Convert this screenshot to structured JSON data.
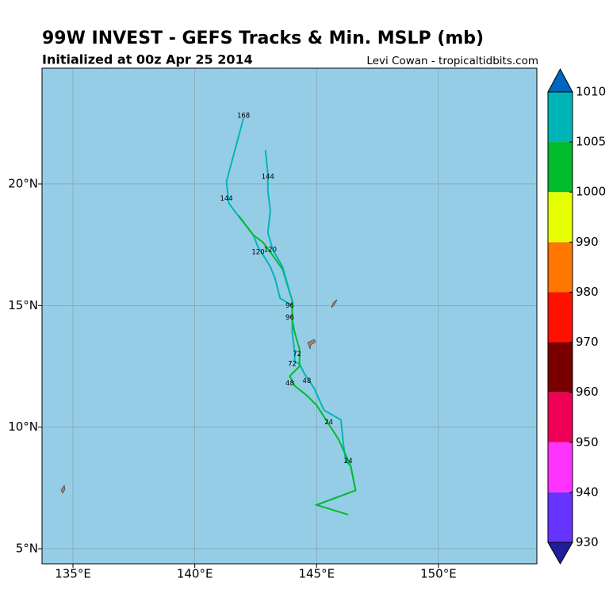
{
  "chart_data": {
    "type": "line",
    "title": "99W INVEST - GEFS Tracks & Min. MSLP (mb)",
    "subtitle": "Initialized at 00z Apr 25 2014",
    "credit": "Levi Cowan - tropicaltidbits.com",
    "xlim": [
      133.73,
      154.04
    ],
    "ylim": [
      4.38,
      24.76
    ],
    "xticks": [
      {
        "value": 135,
        "label": "135°E"
      },
      {
        "value": 140,
        "label": "140°E"
      },
      {
        "value": 145,
        "label": "145°E"
      },
      {
        "value": 150,
        "label": "150°E"
      }
    ],
    "yticks": [
      {
        "value": 5,
        "label": "5°N"
      },
      {
        "value": 10,
        "label": "10°N"
      },
      {
        "value": 15,
        "label": "15°N"
      },
      {
        "value": 20,
        "label": "20°N"
      }
    ],
    "grid": true,
    "background": "#96cde6",
    "series": [
      {
        "color": "#00b5b8",
        "x": [
          145.0,
          146.6,
          146.4,
          146.2,
          146.1,
          146.0,
          145.3,
          144.9,
          144.5,
          144.3,
          144.1,
          144.1,
          144.0,
          144.0,
          143.5,
          143.3,
          143.1,
          142.6,
          142.4,
          141.7,
          141.4,
          141.3,
          142.0
        ],
        "y": [
          6.8,
          7.4,
          8.4,
          8.6,
          9.3,
          10.3,
          10.7,
          11.6,
          12.2,
          12.6,
          12.7,
          13.1,
          13.9,
          15.0,
          15.3,
          16.1,
          16.6,
          17.4,
          17.9,
          18.8,
          19.2,
          20.1,
          22.7
        ]
      },
      {
        "color": "#00bb2a",
        "x": [
          146.3,
          145.0,
          146.6,
          146.4,
          145.9,
          145.0,
          144.6,
          144.1,
          143.9,
          144.3,
          144.3,
          144.1,
          144.0,
          144.0,
          143.6,
          143.1,
          142.8,
          142.4,
          141.8
        ],
        "y": [
          6.4,
          6.8,
          7.4,
          8.4,
          9.5,
          10.9,
          11.3,
          11.7,
          12.1,
          12.5,
          13.2,
          13.9,
          14.4,
          15.2,
          16.5,
          17.2,
          17.6,
          17.9,
          18.7
        ]
      },
      {
        "color": "#00b5b8",
        "x": [
          142.9,
          143.0,
          143.0,
          143.1,
          143.0,
          143.2,
          143.6,
          144.0
        ],
        "y": [
          21.4,
          20.4,
          19.7,
          18.9,
          18.0,
          17.3,
          16.6,
          15.2
        ]
      }
    ],
    "hour_labels": [
      {
        "text": "168",
        "x": 142.0,
        "y": 22.8
      },
      {
        "text": "144",
        "x": 143.0,
        "y": 20.3
      },
      {
        "text": "144",
        "x": 141.3,
        "y": 19.4
      },
      {
        "text": "120",
        "x": 142.6,
        "y": 17.2
      },
      {
        "text": "120",
        "x": 143.1,
        "y": 17.3
      },
      {
        "text": "96",
        "x": 143.9,
        "y": 15.0
      },
      {
        "text": "96",
        "x": 143.9,
        "y": 14.5
      },
      {
        "text": "72",
        "x": 144.2,
        "y": 13.0
      },
      {
        "text": "72",
        "x": 144.0,
        "y": 12.6
      },
      {
        "text": "48",
        "x": 143.9,
        "y": 11.8
      },
      {
        "text": "48",
        "x": 144.6,
        "y": 11.9
      },
      {
        "text": "24",
        "x": 145.5,
        "y": 10.2
      },
      {
        "text": "24",
        "x": 146.3,
        "y": 8.6
      }
    ],
    "colorbar": {
      "levels": [
        930,
        940,
        950,
        960,
        970,
        980,
        990,
        1000,
        1005,
        1010
      ],
      "colors": [
        "#6633ff",
        "#ff33ff",
        "#ee0055",
        "#7a0000",
        "#ff1100",
        "#ff7700",
        "#e6ff00",
        "#00bb2a",
        "#00b5b8"
      ],
      "under": "#1f1f99",
      "over": "#0066c0"
    }
  }
}
